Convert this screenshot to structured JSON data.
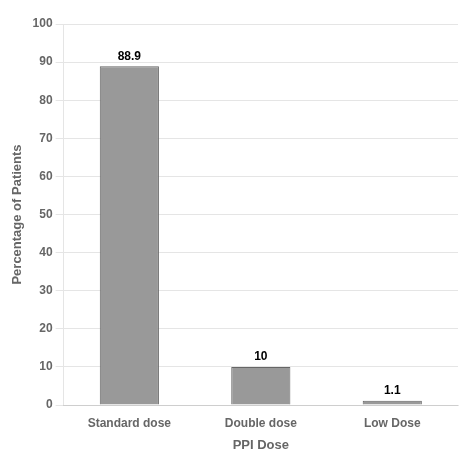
{
  "chart_data": {
    "type": "bar",
    "categories": [
      "Standard dose",
      "Double dose",
      "Low Dose"
    ],
    "values": [
      88.9,
      10.0,
      1.1
    ],
    "color": "#999999",
    "xlabel": "PPI Dose",
    "ylabel": "Percentage of Patients",
    "ylim": [
      0,
      100
    ],
    "yticks": [
      0,
      10,
      20,
      30,
      40,
      50,
      60,
      70,
      80,
      90,
      100
    ],
    "grid": true,
    "data_labels": true
  }
}
